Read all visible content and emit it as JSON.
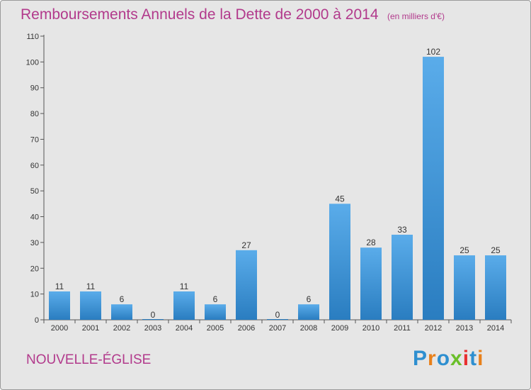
{
  "header": {
    "title": "Remboursements Annuels de la Dette de 2000 à 2014",
    "unit": "(en milliers d'€)"
  },
  "footer": {
    "commune": "NOUVELLE-ÉGLISE",
    "logo": "Proxiti"
  },
  "colors": {
    "title": "#b23a8c",
    "bar_light": "#5aacea",
    "bar_dark": "#2a7dc0",
    "background": "#e6e6e6",
    "logo_letters": [
      "#2e8fd0",
      "#e8801a",
      "#2e8fd0",
      "#6abf2a",
      "#e83030",
      "#2e8fd0",
      "#e8801a"
    ]
  },
  "chart_data": {
    "type": "bar",
    "title": "Remboursements Annuels de la Dette de 2000 à 2014",
    "subtitle": "(en milliers d'€)",
    "xlabel": "",
    "ylabel": "",
    "categories": [
      "2000",
      "2001",
      "2002",
      "2003",
      "2004",
      "2005",
      "2006",
      "2007",
      "2008",
      "2009",
      "2010",
      "2011",
      "2012",
      "2013",
      "2014"
    ],
    "values": [
      11,
      11,
      6,
      0,
      11,
      6,
      27,
      0,
      6,
      45,
      28,
      33,
      102,
      25,
      25
    ],
    "ylim": [
      0,
      110
    ],
    "yticks": [
      0,
      10,
      20,
      30,
      40,
      50,
      60,
      70,
      80,
      90,
      100,
      110
    ],
    "grid": false,
    "data_labels": true
  }
}
